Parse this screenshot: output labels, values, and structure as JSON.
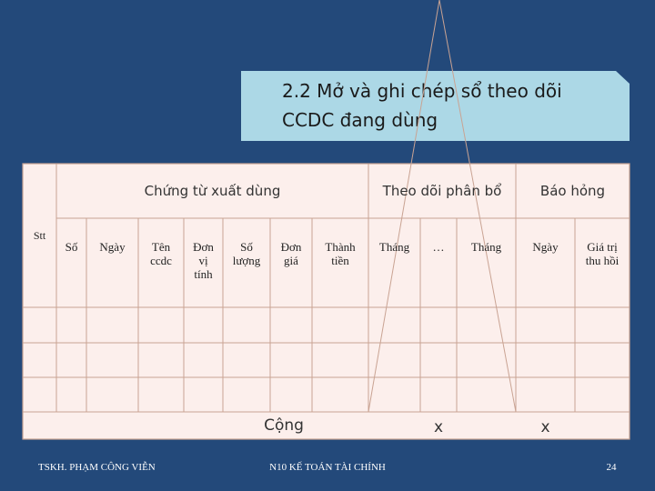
{
  "title": "2.2 Mở và ghi chép sổ theo dõi CCDC đang dùng",
  "table": {
    "stt": "Stt",
    "groups": [
      "Chứng từ xuất dùng",
      "Theo dõi phân bổ",
      "Báo hỏng"
    ],
    "columns": [
      "Số",
      "Ngày",
      "Tên ccdc",
      "Đơn vị tính",
      "Số lượng",
      "Đơn giá",
      "Thành tiền",
      "Tháng",
      "…",
      "Tháng",
      "Ngày",
      "Giá trị thu hồi"
    ],
    "total_label": "Cộng",
    "total_marks": [
      "x",
      "x"
    ]
  },
  "footer": {
    "left": "TSKH. PHẠM CÔNG VIỄN",
    "center": "N10 KẾ TOÁN TÀI CHÍNH",
    "page": "24"
  }
}
